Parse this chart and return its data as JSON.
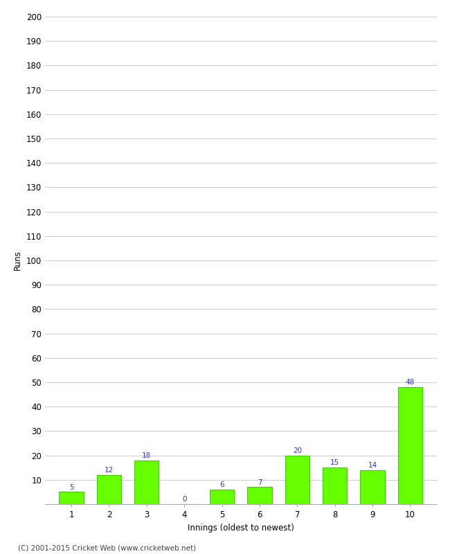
{
  "categories": [
    "1",
    "2",
    "3",
    "4",
    "5",
    "6",
    "7",
    "8",
    "9",
    "10"
  ],
  "values": [
    5,
    12,
    18,
    0,
    6,
    7,
    20,
    15,
    14,
    48
  ],
  "bar_color": "#66ff00",
  "bar_edgecolor": "#44cc00",
  "value_color": "#3333cc",
  "xlabel": "Innings (oldest to newest)",
  "ylabel": "Runs",
  "ylim": [
    0,
    200
  ],
  "yticks": [
    10,
    20,
    30,
    40,
    50,
    60,
    70,
    80,
    90,
    100,
    110,
    120,
    130,
    140,
    150,
    160,
    170,
    180,
    190,
    200
  ],
  "background_color": "#ffffff",
  "grid_color": "#cccccc",
  "footer": "(C) 2001-2015 Cricket Web (www.cricketweb.net)",
  "value_fontsize": 7.5,
  "axis_fontsize": 8.5,
  "label_fontsize": 8.5,
  "footer_fontsize": 7.5
}
